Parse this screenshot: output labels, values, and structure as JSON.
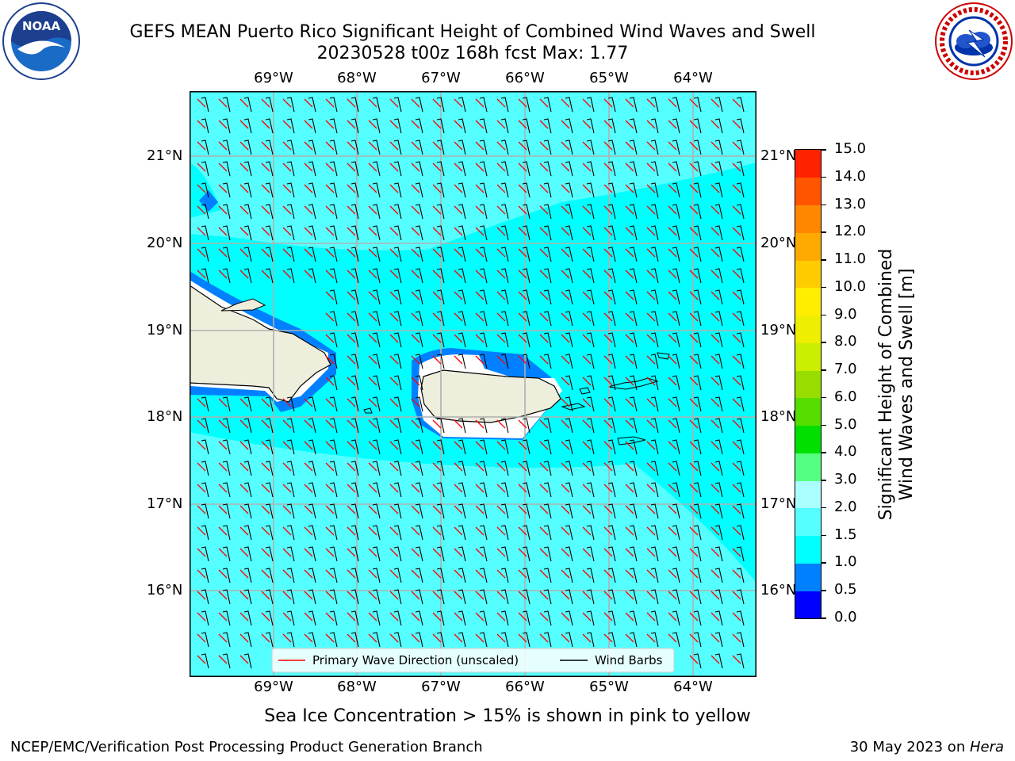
{
  "header": {
    "title_line1": "GEFS MEAN Puerto Rico Significant Height of Combined Wind Waves and Swell",
    "title_line2": "20230528 t00z 168h fcst   Max: 1.77"
  },
  "logos": {
    "noaa_text": "NOAA",
    "noaa_ring": "NATIONAL OCEANIC AND ATMOSPHERIC ADMINISTRATION · U.S. DEPARTMENT OF COMMERCE",
    "nws_ring": "NATIONAL WEATHER SERVICE"
  },
  "map": {
    "lon_ticks": [
      "69°W",
      "68°W",
      "67°W",
      "66°W",
      "65°W",
      "64°W"
    ],
    "lat_ticks": [
      "21°N",
      "20°N",
      "19°N",
      "18°N",
      "17°N",
      "16°N"
    ],
    "legend": {
      "wave_label": "Primary Wave Direction (unscaled)",
      "barb_label": "Wind Barbs"
    },
    "colors": {
      "ocean_main": "#00ffff",
      "ocean_light": "#55ffff",
      "ocean_mid": "#00eeee",
      "low_wave": "#0080ff",
      "land": "#eeeedd",
      "wave_arrow": "#ff0000",
      "wind_barb": "#000000"
    }
  },
  "colorbar": {
    "label_line1": "Significant Height of Combined",
    "label_line2": "Wind Waves and Swell [m]",
    "ticks": [
      "0.0",
      "0.5",
      "1.0",
      "1.5",
      "2.0",
      "3.0",
      "4.0",
      "5.0",
      "6.0",
      "7.0",
      "8.0",
      "9.0",
      "10.0",
      "11.0",
      "12.0",
      "13.0",
      "14.0",
      "15.0"
    ],
    "colors": [
      "#0000ff",
      "#0080ff",
      "#00ffff",
      "#55ffff",
      "#aaffff",
      "#55ff7f",
      "#00e000",
      "#55dd00",
      "#99dd00",
      "#ccee00",
      "#eeee00",
      "#ffee00",
      "#ffcc00",
      "#ffaa00",
      "#ff8800",
      "#ff5500",
      "#ff2200"
    ]
  },
  "caption": "Sea Ice Concentration > 15% is shown in pink to yellow",
  "footer": {
    "left": "NCEP/EMC/Verification Post Processing Product Generation Branch",
    "right_prefix": "30 May 2023 on ",
    "right_host": "Hera"
  }
}
